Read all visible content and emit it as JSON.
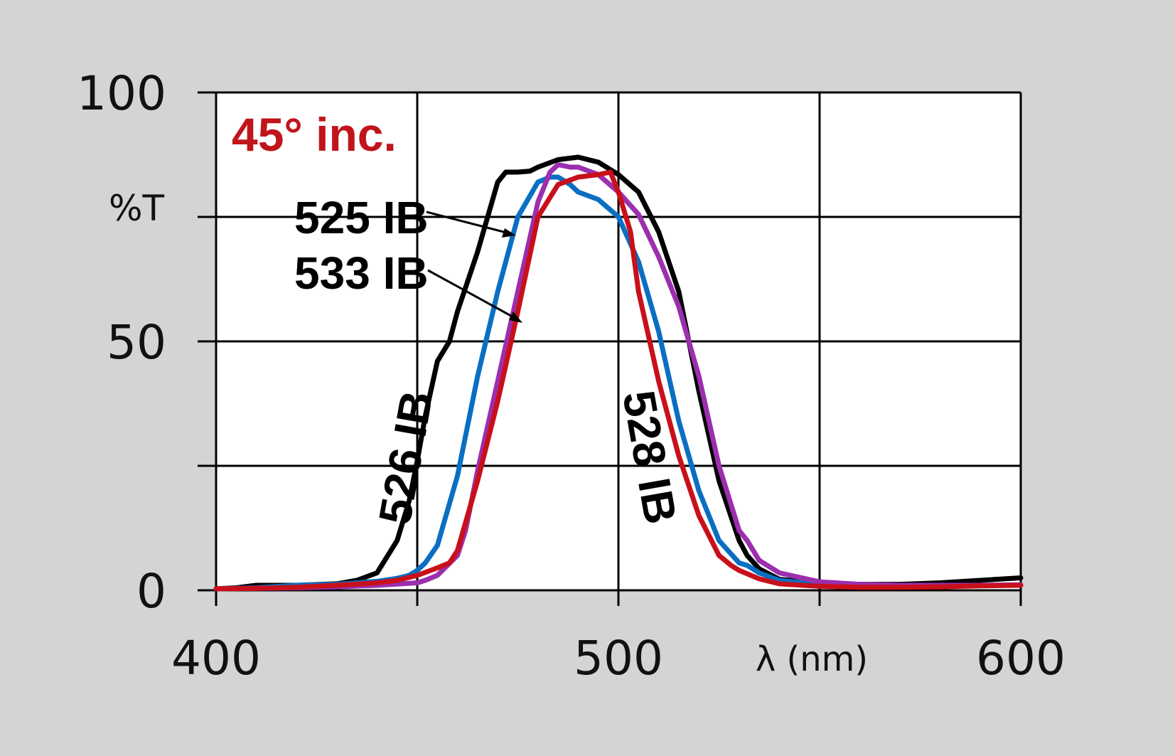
{
  "chart_data": {
    "type": "line",
    "title": "",
    "annotation": "45° inc.",
    "xlabel": "λ (nm)",
    "ylabel": "%T",
    "xlim": [
      400,
      600
    ],
    "ylim": [
      0,
      100
    ],
    "x_ticks": [
      400,
      500,
      600
    ],
    "y_ticks": [
      0,
      50,
      100
    ],
    "x_grid": [
      400,
      450,
      500,
      550,
      600
    ],
    "y_grid": [
      0,
      25,
      50,
      75,
      100
    ],
    "grid": true,
    "legend": "none",
    "colors": {
      "annotation": "#c0151b",
      "plot_background": "#ffffff",
      "page_background": "#d4d4d4"
    },
    "series": [
      {
        "name": "526 IB",
        "color": "#000000",
        "x": [
          400,
          405,
          410,
          420,
          430,
          435,
          440,
          445,
          448,
          450,
          452,
          455,
          458,
          460,
          465,
          470,
          472,
          475,
          478,
          480,
          485,
          490,
          495,
          500,
          505,
          510,
          515,
          520,
          525,
          530,
          532,
          535,
          540,
          550,
          560,
          570,
          580,
          590,
          600
        ],
        "y": [
          0.3,
          0.5,
          1,
          1,
          1.3,
          2,
          3.5,
          10,
          18,
          26,
          35,
          46,
          50,
          56,
          68,
          82,
          84,
          84,
          84.2,
          85,
          86.5,
          87,
          86,
          83.5,
          80,
          72,
          60,
          40,
          22,
          10,
          7,
          4.3,
          2.2,
          1.5,
          1.2,
          1.2,
          1.5,
          2,
          2.5
        ]
      },
      {
        "name": "525 IB",
        "color": "#0a6fc2",
        "x": [
          400,
          410,
          420,
          430,
          440,
          445,
          448,
          450,
          452,
          455,
          460,
          465,
          470,
          475,
          480,
          483,
          485,
          488,
          490,
          495,
          500,
          505,
          510,
          515,
          520,
          525,
          530,
          532,
          535,
          540,
          550,
          560,
          570,
          580,
          590,
          600
        ],
        "y": [
          0.3,
          0.5,
          1,
          1.2,
          1.8,
          2.4,
          3,
          4,
          5.5,
          9,
          23,
          43,
          60,
          75,
          82,
          83,
          83,
          81.5,
          80,
          78.5,
          75,
          66,
          52,
          34,
          20,
          10,
          5.5,
          5,
          3.5,
          2,
          1.2,
          1,
          1,
          1,
          1,
          1
        ]
      },
      {
        "name": "533 IB",
        "color": "#9b2fae",
        "x": [
          400,
          410,
          420,
          430,
          440,
          450,
          452,
          455,
          460,
          462,
          465,
          470,
          475,
          480,
          483,
          485,
          488,
          490,
          495,
          500,
          505,
          510,
          515,
          520,
          525,
          530,
          532,
          535,
          540,
          550,
          560,
          570,
          580,
          590,
          600
        ],
        "y": [
          0.3,
          0.4,
          0.5,
          0.7,
          1,
          1.5,
          2,
          3,
          7,
          12,
          24,
          42,
          60,
          78,
          84,
          85.5,
          85,
          85,
          83.5,
          80,
          75.5,
          67,
          57,
          43,
          25,
          12,
          10,
          6,
          3.5,
          1.7,
          1.2,
          1,
          1,
          1,
          1.1
        ]
      },
      {
        "name": "528 IB",
        "color": "#c8101b",
        "x": [
          400,
          410,
          420,
          430,
          440,
          445,
          450,
          455,
          458,
          460,
          465,
          470,
          475,
          480,
          485,
          490,
          495,
          498,
          500,
          503,
          505,
          510,
          515,
          520,
          525,
          528,
          530,
          535,
          540,
          550,
          560,
          570,
          580,
          590,
          600
        ],
        "y": [
          0.3,
          0.4,
          0.6,
          1,
          1.5,
          2,
          3,
          4.5,
          5.5,
          8,
          22,
          38,
          56,
          75,
          81.5,
          83,
          83.5,
          84,
          80,
          72,
          60,
          42,
          27,
          15,
          7,
          5,
          4,
          2.3,
          1.3,
          0.8,
          0.6,
          0.6,
          0.7,
          0.9,
          1
        ]
      }
    ]
  }
}
